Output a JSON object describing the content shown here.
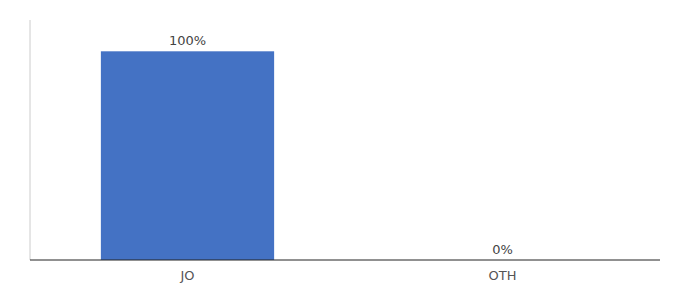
{
  "chart_data": {
    "type": "bar",
    "categories": [
      "JO",
      "OTH"
    ],
    "values": [
      100,
      0
    ],
    "value_labels": [
      "100%",
      "0%"
    ],
    "color": "#4472c4",
    "ylim": [
      0,
      115
    ],
    "data_labels": true,
    "grid": false,
    "tick_labels": "x"
  }
}
